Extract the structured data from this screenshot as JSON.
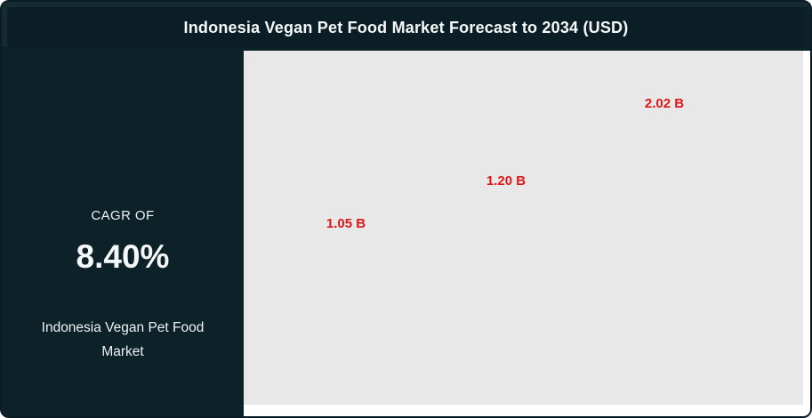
{
  "header": {
    "title": "Indonesia Vegan Pet Food Market Forecast to 2034 (USD)"
  },
  "cagr_panel": {
    "label": "CAGR OF",
    "value": "8.40%",
    "market_name": "Indonesia Vegan Pet Food Market"
  },
  "chart_data": {
    "type": "bar",
    "title": "Indonesia Vegan Pet Food Market Forecast to 2034 (USD)",
    "unit": "USD billions",
    "values": [
      1.05,
      1.2,
      2.02
    ],
    "value_labels": [
      "1.05 B",
      "1.20 B",
      "2.02 B"
    ],
    "cagr_percent": 8.4,
    "axes_visible": false,
    "grid": false,
    "legend": false,
    "label_color": "#dd1717",
    "plot_background": "#e8e8e9"
  },
  "colors": {
    "panel_background": "#0d2129",
    "card_border": "#0b1c24",
    "chart_card_background": "#ffffff",
    "plot_background": "#e8e8e9",
    "value_label_red": "#dd1717",
    "text_white": "#eef3f4"
  }
}
